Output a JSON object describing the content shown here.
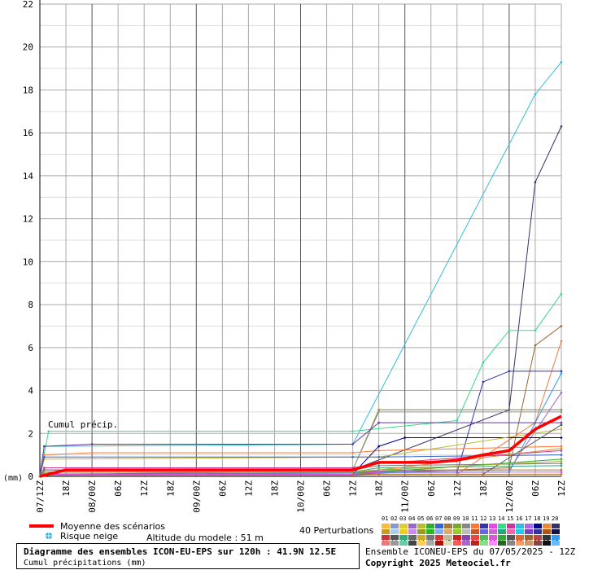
{
  "chart_data": {
    "type": "line",
    "title": "Diagramme des ensembles ICON-EU-EPS sur 120h : 41.9N 12.5E",
    "subtitle": "Cumul précipitations (mm)",
    "ylabel": "(mm)",
    "ylim": [
      0,
      22
    ],
    "yticks": [
      0,
      2,
      4,
      6,
      8,
      10,
      12,
      14,
      16,
      18,
      20,
      22
    ],
    "annotation": "Cumul précip.",
    "x_labels": [
      "07/12Z",
      "18Z",
      "08/00Z",
      "06Z",
      "12Z",
      "18Z",
      "09/00Z",
      "06Z",
      "12Z",
      "18Z",
      "10/00Z",
      "06Z",
      "12Z",
      "18Z",
      "11/00Z",
      "06Z",
      "12Z",
      "18Z",
      "12/00Z",
      "06Z",
      "12Z"
    ],
    "x_hours": [
      0,
      6,
      12,
      18,
      24,
      30,
      36,
      42,
      48,
      54,
      60,
      66,
      72,
      78,
      84,
      90,
      96,
      102,
      108,
      114,
      120
    ],
    "grid": true,
    "mean_series": {
      "name": "Moyenne des scénarios",
      "color": "#ff0000",
      "x": [
        0,
        6,
        72,
        78,
        84,
        90,
        96,
        102,
        108,
        114,
        120
      ],
      "y": [
        0.0,
        0.3,
        0.3,
        0.65,
        0.65,
        0.65,
        0.75,
        1.0,
        1.2,
        2.2,
        2.8
      ]
    },
    "series": [
      {
        "x": [
          0,
          1,
          72,
          114,
          120
        ],
        "y": [
          0,
          1.4,
          1.5,
          17.8,
          19.3
        ],
        "color": "#33bbdd"
      },
      {
        "x": [
          0,
          1,
          72,
          108,
          114,
          120
        ],
        "y": [
          0,
          0.3,
          0.3,
          3.1,
          13.7,
          16.3
        ],
        "color": "#333366"
      },
      {
        "x": [
          0,
          2,
          72,
          96,
          102,
          108,
          114,
          120
        ],
        "y": [
          0,
          2.1,
          2.1,
          2.6,
          5.3,
          6.8,
          6.8,
          8.5
        ],
        "color": "#33dd88"
      },
      {
        "x": [
          0,
          1,
          72,
          108,
          114,
          120
        ],
        "y": [
          0,
          0.1,
          0.1,
          0.4,
          6.1,
          7.0
        ],
        "color": "#996633"
      },
      {
        "x": [
          0,
          1,
          96,
          114,
          120
        ],
        "y": [
          0,
          0.1,
          0.1,
          2.5,
          6.3
        ],
        "color": "#ee7744"
      },
      {
        "x": [
          0,
          1,
          84,
          96,
          102,
          108,
          120
        ],
        "y": [
          0,
          0.2,
          0.2,
          0.2,
          4.4,
          4.9,
          4.9
        ],
        "color": "#3333aa"
      },
      {
        "x": [
          0,
          1,
          108,
          120
        ],
        "y": [
          0,
          0.1,
          0.2,
          4.8
        ],
        "color": "#3399ee"
      },
      {
        "x": [
          0,
          1,
          108,
          120
        ],
        "y": [
          0,
          0.1,
          0.3,
          3.9
        ],
        "color": "#9966cc"
      },
      {
        "x": [
          0,
          1,
          72,
          78,
          120
        ],
        "y": [
          0,
          0.3,
          0.3,
          3.1,
          3.1
        ],
        "color": "#778833"
      },
      {
        "x": [
          0,
          1,
          72,
          78,
          120
        ],
        "y": [
          0,
          0.3,
          0.3,
          3.0,
          3.0
        ],
        "color": "#999999"
      },
      {
        "x": [
          0,
          1,
          12,
          72,
          78,
          120
        ],
        "y": [
          0,
          1.4,
          1.5,
          1.5,
          2.5,
          2.5
        ],
        "color": "#6633aa"
      },
      {
        "x": [
          0,
          1,
          12,
          72,
          78,
          120
        ],
        "y": [
          0,
          1.0,
          1.1,
          1.1,
          1.2,
          1.4
        ],
        "color": "#ff7733"
      },
      {
        "x": [
          0,
          1,
          72,
          78,
          84,
          120
        ],
        "y": [
          0,
          0.1,
          0.1,
          1.4,
          1.8,
          1.8
        ],
        "color": "#000088"
      },
      {
        "x": [
          0,
          1,
          72,
          78,
          120
        ],
        "y": [
          0,
          0.8,
          0.9,
          0.9,
          2.2
        ],
        "color": "#bbbb33"
      },
      {
        "x": [
          0,
          1,
          72,
          78,
          120
        ],
        "y": [
          0,
          0.9,
          0.9,
          0.9,
          1.0
        ],
        "color": "#3366cc"
      },
      {
        "x": [
          0,
          1,
          72,
          78,
          120
        ],
        "y": [
          0,
          0.4,
          0.4,
          0.6,
          1.2
        ],
        "color": "#cc3399"
      },
      {
        "x": [
          0,
          1,
          72,
          78,
          120
        ],
        "y": [
          0,
          0.3,
          0.3,
          0.5,
          0.6
        ],
        "color": "#777777"
      },
      {
        "x": [
          0,
          1,
          72,
          78,
          120
        ],
        "y": [
          0,
          0.2,
          0.2,
          0.4,
          0.5
        ],
        "color": "#33aa77"
      },
      {
        "x": [
          0,
          1,
          72,
          78,
          120
        ],
        "y": [
          0,
          0.1,
          0.1,
          0.3,
          0.3
        ],
        "color": "#aa7733"
      },
      {
        "x": [
          0,
          1,
          120
        ],
        "y": [
          0,
          0.05,
          0.1
        ],
        "color": "#44cccc"
      },
      {
        "x": [
          0,
          1,
          72,
          78,
          120
        ],
        "y": [
          0,
          0.2,
          0.2,
          0.3,
          1.3
        ],
        "color": "#dd8833"
      },
      {
        "x": [
          0,
          1,
          102,
          120
        ],
        "y": [
          0,
          0.1,
          0.1,
          2.4
        ],
        "color": "#555555"
      },
      {
        "x": [
          0,
          1,
          72,
          78,
          120
        ],
        "y": [
          0,
          0.2,
          0.2,
          0.2,
          0.8
        ],
        "color": "#33aa33"
      },
      {
        "x": [
          0,
          1,
          72,
          78,
          120
        ],
        "y": [
          0,
          0.2,
          0.2,
          0.3,
          0.7
        ],
        "color": "#aaaa33"
      },
      {
        "x": [
          0,
          1,
          72,
          78,
          120
        ],
        "y": [
          0,
          0.1,
          0.1,
          0.2,
          0.2
        ],
        "color": "#ee44ee"
      },
      {
        "x": [
          0,
          1,
          72,
          78,
          120
        ],
        "y": [
          0,
          0.05,
          0.05,
          0.1,
          0.1
        ],
        "color": "#cc7722"
      }
    ],
    "legend": {
      "mean_label": "Moyenne des scénarios",
      "snow_label": "Risque neige",
      "altitude": "Altitude du modele : 51 m",
      "perturbations_label": "40 Perturbations"
    }
  },
  "pert_numbers_top": [
    "01",
    "02",
    "03",
    "04",
    "05",
    "06",
    "07",
    "08",
    "09",
    "10",
    "11",
    "12",
    "13",
    "14",
    "15",
    "16",
    "17",
    "18",
    "19",
    "20"
  ],
  "pert_numbers_bottom": [
    "21",
    "22",
    "23",
    "24",
    "25",
    "26",
    "27",
    "28",
    "29",
    "30",
    "31",
    "32",
    "33",
    "34",
    "35",
    "36",
    "37",
    "38",
    "39",
    "40"
  ],
  "pert_colors_top": [
    "#ffbb33",
    "#8899cc",
    "#ddcc33",
    "#9966cc",
    "#bbbb33",
    "#33aa33",
    "#3366cc",
    "#aa7733",
    "#77aa33",
    "#888888",
    "#ff7733",
    "#3333aa",
    "#ee44ee",
    "#33dd88",
    "#cc3399",
    "#33bbdd",
    "#aa66ee",
    "#000088",
    "#ee8833",
    "#333366"
  ],
  "pert_colors_top2": [
    "#cc9922",
    "#aaccee",
    "#eecc22",
    "#cc88ee",
    "#999922",
    "#22bb22",
    "#88aaee",
    "#ddaa66",
    "#99cc22",
    "#bbbbbb",
    "#cc5522",
    "#6666dd",
    "#cc66cc",
    "#22aa77",
    "#ee66aa",
    "#22ccee",
    "#7744bb",
    "#333399",
    "#aa5511",
    "#111144"
  ],
  "pert_colors_bottom": [
    "#cc3333",
    "#555555",
    "#33aa77",
    "#666666",
    "#ccaa22",
    "#777777",
    "#dd3333",
    "#bbbb99",
    "#cc2222",
    "#8844aa",
    "#ee4444",
    "#55bb55",
    "#dd55dd",
    "#33aa33",
    "#555555",
    "#dd6633",
    "#996633",
    "#bb4444",
    "#333333",
    "#3399ee"
  ],
  "pert_colors_bottom2": [
    "#ee7777",
    "#999999",
    "#66ccaa",
    "#444444",
    "#ffcc55",
    "#aaaaaa",
    "#aa1111",
    "#ddddbb",
    "#ff5555",
    "#aa66cc",
    "#bb2222",
    "#88dd88",
    "#ff88ff",
    "#226622",
    "#888888",
    "#ff9966",
    "#cc9966",
    "#884444",
    "#111111",
    "#66bbff"
  ],
  "footer": {
    "title_line": "Diagramme des ensembles ICON-EU-EPS sur 120h : 41.9N 12.5E",
    "subtitle_line": "Cumul précipitations (mm)",
    "run_info": "Ensemble ICONEU-EPS du 07/05/2025 - 12Z",
    "copyright": "Copyright 2025 Meteociel.fr"
  },
  "colors": {
    "mean": "#ff0000",
    "grid_major": "#666666",
    "grid_minor": "#bbbbbb",
    "snow": "#22aadd"
  }
}
